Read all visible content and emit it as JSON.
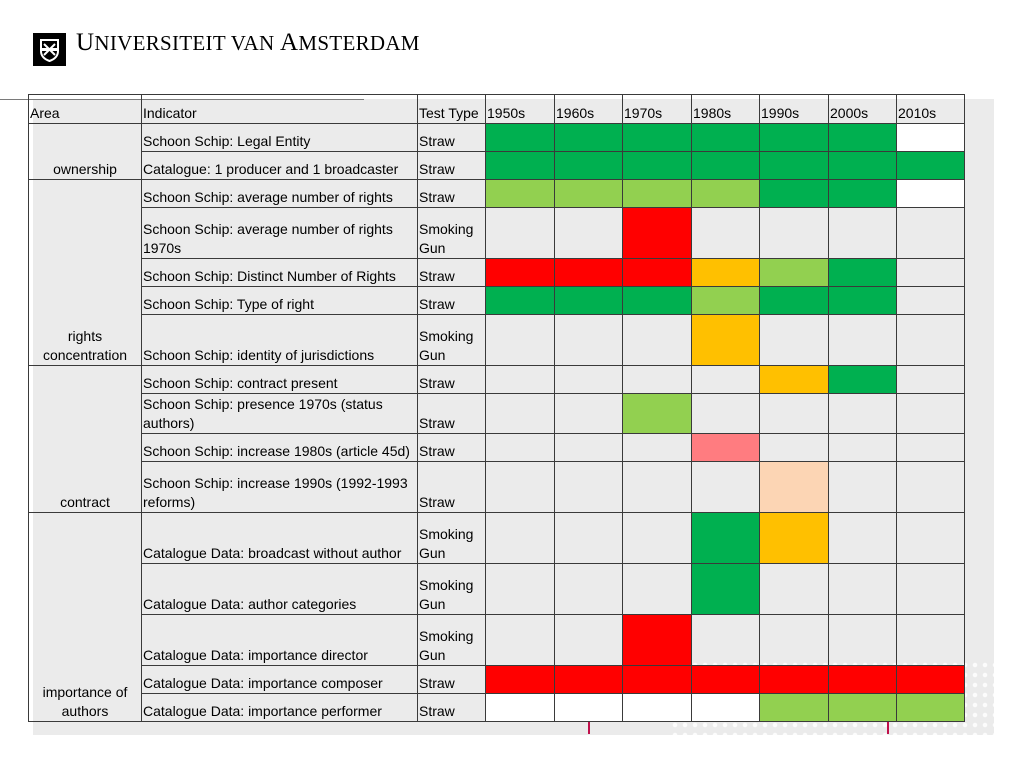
{
  "header": {
    "logo_text_u": "U",
    "logo_text_rest1": "NIVERSITEIT VAN ",
    "logo_text_a": "A",
    "logo_text_rest2": "MSTERDAM",
    "emblem_icon": "uva-emblem-icon"
  },
  "table": {
    "headers": [
      "Area",
      "Indicator",
      "Test Type",
      "1950s",
      "1960s",
      "1970s",
      "1980s",
      "1990s",
      "2000s",
      "2010s"
    ],
    "colors": {
      "dg": "#00b050",
      "lg": "#92d050",
      "rd": "#ff0000",
      "or": "#ffc000",
      "pk": "#ff7c80",
      "pe": "#fcd5b4",
      "wh": "#ffffff",
      "no": "none"
    },
    "groups": [
      {
        "area": "ownership",
        "rows": [
          {
            "indicator": "Schoon Schip: Legal Entity",
            "test": "Straw",
            "cells": [
              "dg",
              "dg",
              "dg",
              "dg",
              "dg",
              "dg",
              "wh"
            ]
          },
          {
            "indicator": "Catalogue: 1 producer and 1 broadcaster",
            "test": "Straw",
            "cells": [
              "dg",
              "dg",
              "dg",
              "dg",
              "dg",
              "dg",
              "dg"
            ]
          }
        ]
      },
      {
        "area": "rights concentration",
        "rows": [
          {
            "indicator": "Schoon Schip: average number of rights",
            "test": "Straw",
            "cells": [
              "lg",
              "lg",
              "lg",
              "lg",
              "dg",
              "dg",
              "wh"
            ]
          },
          {
            "indicator": "Schoon Schip: average number of rights 1970s",
            "test": "Smoking Gun",
            "tall": true,
            "cells": [
              "no",
              "no",
              "rd",
              "no",
              "no",
              "no",
              "no"
            ]
          },
          {
            "indicator": "Schoon Schip: Distinct Number of Rights",
            "test": "Straw",
            "cells": [
              "rd",
              "rd",
              "rd",
              "or",
              "lg",
              "dg",
              "no"
            ]
          },
          {
            "indicator": "Schoon Schip: Type of right",
            "test": "Straw",
            "cells": [
              "dg",
              "dg",
              "dg",
              "lg",
              "dg",
              "dg",
              "no"
            ]
          },
          {
            "indicator": "Schoon Schip: identity of jurisdictions",
            "test": "Smoking Gun",
            "tall": true,
            "cells": [
              "no",
              "no",
              "no",
              "or",
              "no",
              "no",
              "no"
            ]
          }
        ]
      },
      {
        "area": "contract",
        "rows": [
          {
            "indicator": "Schoon Schip: contract present",
            "test": "Straw",
            "cells": [
              "no",
              "no",
              "no",
              "no",
              "or",
              "dg",
              "no"
            ]
          },
          {
            "indicator": "Schoon Schip: presence 1970s (status authors)",
            "test": "Straw",
            "mid": true,
            "cells": [
              "no",
              "no",
              "lg",
              "no",
              "no",
              "no",
              "no"
            ]
          },
          {
            "indicator": "Schoon Schip: increase 1980s (article 45d)",
            "test": "Straw",
            "cells": [
              "no",
              "no",
              "no",
              "pk",
              "no",
              "no",
              "no"
            ]
          },
          {
            "indicator": "Schoon Schip: increase 1990s (1992-1993 reforms)",
            "test": "Straw",
            "tall": true,
            "cells": [
              "no",
              "no",
              "no",
              "no",
              "pe",
              "no",
              "no"
            ]
          }
        ]
      },
      {
        "area": "importance of authors",
        "rows": [
          {
            "indicator": "Catalogue Data: broadcast without author",
            "test": "Smoking Gun",
            "tall": true,
            "cells": [
              "no",
              "no",
              "no",
              "dg",
              "or",
              "no",
              "no"
            ]
          },
          {
            "indicator": "Catalogue Data: author categories",
            "test": "Smoking Gun",
            "tall": true,
            "cells": [
              "no",
              "no",
              "no",
              "dg",
              "no",
              "no",
              "no"
            ]
          },
          {
            "indicator": "Catalogue Data: importance director",
            "test": "Smoking Gun",
            "tall": true,
            "cells": [
              "no",
              "no",
              "rd",
              "no",
              "no",
              "no",
              "no"
            ]
          },
          {
            "indicator": "Catalogue Data: importance composer",
            "test": "Straw",
            "cells": [
              "rd",
              "rd",
              "rd",
              "rd",
              "rd",
              "rd",
              "rd"
            ]
          },
          {
            "indicator": "Catalogue Data: importance performer",
            "test": "Straw",
            "cells": [
              "wh",
              "wh",
              "wh",
              "wh",
              "lg",
              "lg",
              "lg"
            ]
          }
        ]
      }
    ]
  }
}
